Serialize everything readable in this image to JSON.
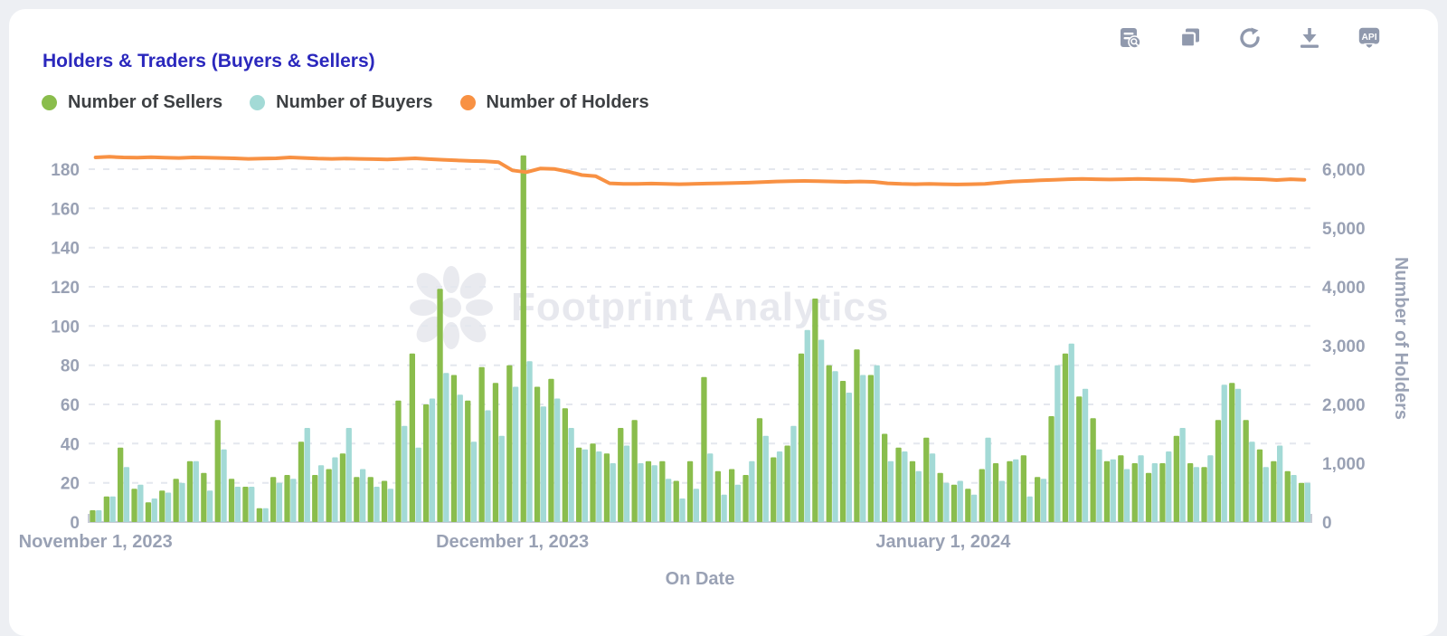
{
  "header": {
    "title": "Holders & Traders (Buyers & Sellers)"
  },
  "toolbar": {
    "icons": [
      "data-preview",
      "copy-chart",
      "refresh",
      "download",
      "api"
    ]
  },
  "legend": [
    {
      "label": "Number of Sellers",
      "color": "#8abd4c"
    },
    {
      "label": "Number of Buyers",
      "color": "#a3dad6"
    },
    {
      "label": "Number of Holders",
      "color": "#f89143"
    }
  ],
  "watermark": {
    "text": "Footprint Analytics"
  },
  "chart_data": {
    "type": "bar",
    "x_axis_title": "On Date",
    "x_start_date": "2023-11-01",
    "x_end_date": "2024-01-27",
    "num_days": 88,
    "x_tick_labels": [
      {
        "label": "November 1, 2023",
        "index": 0
      },
      {
        "label": "December 1, 2023",
        "index": 30
      },
      {
        "label": "January 1, 2024",
        "index": 61
      }
    ],
    "left_axis": {
      "ticks": [
        0,
        20,
        40,
        60,
        80,
        100,
        120,
        140,
        160,
        180
      ],
      "max": 190,
      "grid": "dashed"
    },
    "right_axis": {
      "title": "Number of Holders",
      "ticks": [
        0,
        1000,
        2000,
        3000,
        4000,
        5000,
        6000
      ],
      "max": 6000
    },
    "series": [
      {
        "name": "Number of Sellers",
        "type": "bar",
        "axis": "left",
        "color": "#8abd4c",
        "values": [
          6,
          13,
          38,
          17,
          10,
          16,
          22,
          31,
          25,
          52,
          22,
          18,
          7,
          23,
          24,
          41,
          24,
          27,
          35,
          23,
          23,
          21,
          62,
          86,
          60,
          119,
          75,
          62,
          79,
          71,
          80,
          187,
          69,
          73,
          58,
          38,
          40,
          35,
          48,
          52,
          31,
          31,
          21,
          31,
          74,
          26,
          27,
          24,
          53,
          33,
          39,
          86,
          114,
          80,
          72,
          88,
          75,
          45,
          38,
          31,
          43,
          25,
          19,
          17,
          27,
          30,
          31,
          34,
          23,
          54,
          86,
          64,
          53,
          31,
          34,
          30,
          25,
          30,
          44,
          30,
          28,
          52,
          71,
          52,
          37,
          31,
          26,
          20
        ]
      },
      {
        "name": "Number of Buyers",
        "type": "bar",
        "axis": "left",
        "color": "#a3dad6",
        "values": [
          6,
          13,
          28,
          19,
          12,
          15,
          20,
          31,
          16,
          37,
          18,
          18,
          7,
          20,
          22,
          48,
          29,
          33,
          48,
          27,
          18,
          17,
          49,
          38,
          63,
          76,
          65,
          41,
          57,
          44,
          69,
          82,
          59,
          63,
          48,
          37,
          36,
          30,
          39,
          30,
          29,
          22,
          12,
          17,
          35,
          14,
          19,
          31,
          44,
          36,
          49,
          98,
          93,
          77,
          66,
          75,
          80,
          31,
          36,
          26,
          35,
          20,
          21,
          14,
          43,
          21,
          32,
          13,
          22,
          80,
          91,
          68,
          37,
          32,
          27,
          34,
          30,
          36,
          48,
          28,
          34,
          70,
          68,
          41,
          28,
          39,
          24,
          20
        ]
      },
      {
        "name": "Number of Holders",
        "type": "line",
        "axis": "right",
        "color": "#f89143",
        "values": [
          6200,
          6210,
          6200,
          6195,
          6205,
          6195,
          6190,
          6200,
          6195,
          6190,
          6185,
          6175,
          6180,
          6185,
          6200,
          6190,
          6180,
          6175,
          6180,
          6175,
          6170,
          6165,
          6175,
          6185,
          6170,
          6160,
          6150,
          6140,
          6135,
          6120,
          5980,
          5950,
          6010,
          6005,
          5960,
          5900,
          5880,
          5760,
          5750,
          5750,
          5755,
          5750,
          5745,
          5750,
          5755,
          5760,
          5765,
          5770,
          5780,
          5790,
          5795,
          5800,
          5795,
          5790,
          5785,
          5790,
          5785,
          5760,
          5750,
          5745,
          5750,
          5745,
          5740,
          5745,
          5750,
          5770,
          5790,
          5800,
          5810,
          5820,
          5830,
          5835,
          5830,
          5825,
          5830,
          5835,
          5830,
          5825,
          5820,
          5800,
          5820,
          5835,
          5840,
          5835,
          5830,
          5815,
          5830,
          5820
        ]
      }
    ]
  }
}
